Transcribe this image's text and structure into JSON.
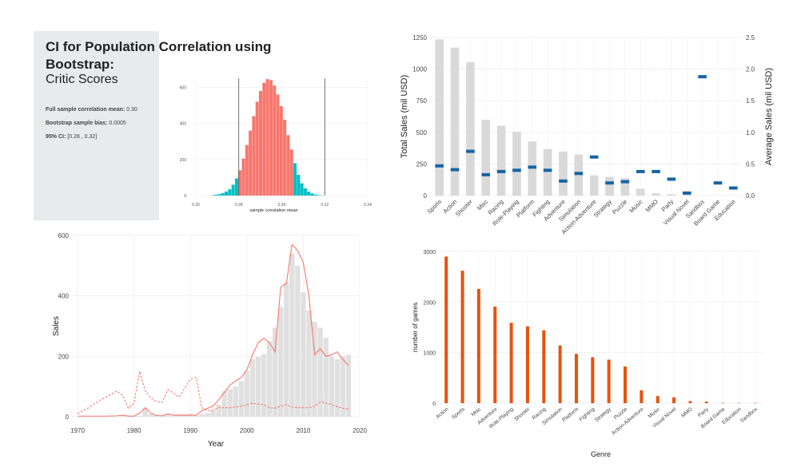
{
  "ci_panel": {
    "title_line1": "CI for Population Correlation using",
    "title_line2": "Bootstrap:",
    "subtitle": "Critic Scores",
    "stats": [
      {
        "label": "Full sample correlation mean:",
        "value": "0.30"
      },
      {
        "label": "Bootstrap sample bias:",
        "value": "0.0005"
      },
      {
        "label": "95% CI:",
        "value": "[0.28 ,  0.32]"
      }
    ],
    "colors": {
      "bar_main": "#f8766d",
      "bar_tail": "#00bfc4"
    }
  },
  "chart_data": [
    {
      "type": "bar",
      "id": "bootstrap-histogram",
      "title": "",
      "xlabel": "sample correlation mean",
      "ylabel": "",
      "xlim": [
        0.26,
        0.34
      ],
      "ylim": [
        0,
        650
      ],
      "x_ticks": [
        "0.26",
        "0.28",
        "0.30",
        "0.32",
        "0.34"
      ],
      "y_ticks": [
        "0",
        "200",
        "400",
        "600"
      ],
      "ci_lines": [
        0.28,
        0.32
      ],
      "bin_start": 0.267,
      "bin_width": 0.0016,
      "values": [
        2,
        5,
        8,
        14,
        22,
        35,
        60,
        95,
        140,
        205,
        280,
        360,
        440,
        520,
        580,
        625,
        645,
        640,
        610,
        560,
        495,
        420,
        335,
        255,
        180,
        115,
        68,
        40,
        22,
        12,
        6,
        3,
        1
      ],
      "tail_bins_left": 8,
      "tail_bins_right": 9
    },
    {
      "type": "bar",
      "id": "genre-sales",
      "title": "",
      "xlabel": "",
      "ylabel": "Total Sales (mil USD)",
      "ylabel_right": "Average Sales (mil USD)",
      "categories": [
        "Sports",
        "Action",
        "Shooter",
        "Misc",
        "Racing",
        "Role-Playing",
        "Platform",
        "Fighting",
        "Adventure",
        "Simulation",
        "Action-Adventure",
        "Strategy",
        "Puzzle",
        "Music",
        "MMO",
        "Party",
        "Visual Novel",
        "Sandbox",
        "Board Game",
        "Education"
      ],
      "series": [
        {
          "name": "",
          "values": [
            1235,
            1170,
            1055,
            600,
            552,
            505,
            428,
            368,
            348,
            325,
            160,
            148,
            137,
            55,
            18,
            10,
            5,
            0,
            0,
            0
          ]
        },
        {
          "name": "",
          "axis": "right",
          "values": [
            0.47,
            0.41,
            0.7,
            0.33,
            0.38,
            0.4,
            0.45,
            0.4,
            0.23,
            0.35,
            0.61,
            0.2,
            0.22,
            0.38,
            0.38,
            0.26,
            0.04,
            1.88,
            0.2,
            0.12
          ]
        }
      ],
      "ylim": [
        0,
        1250
      ],
      "ylim_right": [
        0,
        2.5
      ],
      "y_ticks": [
        "0",
        "250",
        "500",
        "750",
        "1000",
        "1250"
      ],
      "y_ticks_right": [
        "0.0",
        "0.5",
        "1.0",
        "1.5",
        "2.0",
        "2.5"
      ],
      "colors": {
        "bar": "#d9d9d9",
        "mark": "#1565a6"
      }
    },
    {
      "type": "line",
      "id": "sales-by-year",
      "title": "",
      "xlabel": "Year",
      "ylabel": "Sales",
      "xlim": [
        1969,
        2020
      ],
      "ylim": [
        0,
        600
      ],
      "x_ticks": [
        "1970",
        "1980",
        "1990",
        "2000",
        "2010",
        "2020"
      ],
      "y_ticks": [
        "0",
        "200",
        "400",
        "600"
      ],
      "bar_years": [
        1978,
        1979,
        1980,
        1981,
        1982,
        1983,
        1984,
        1985,
        1986,
        1987,
        1988,
        1989,
        1990,
        1991,
        1992,
        1993,
        1994,
        1995,
        1996,
        1997,
        1998,
        1999,
        2000,
        2001,
        2002,
        2003,
        2004,
        2005,
        2006,
        2007,
        2008,
        2009,
        2010,
        2011,
        2012,
        2013,
        2014,
        2015,
        2016,
        2017,
        2018
      ],
      "bar_values": [
        3,
        4,
        3,
        3,
        28,
        10,
        5,
        4,
        8,
        6,
        8,
        8,
        10,
        6,
        8,
        12,
        22,
        40,
        85,
        92,
        100,
        118,
        152,
        190,
        198,
        208,
        250,
        295,
        362,
        445,
        540,
        500,
        412,
        352,
        315,
        295,
        262,
        200,
        190,
        200,
        205
      ],
      "series": [
        {
          "name": "",
          "style": "solid",
          "x": [
            1970,
            1975,
            1977,
            1978,
            1979,
            1980,
            1981,
            1982,
            1983,
            1984,
            1985,
            1986,
            1987,
            1988,
            1990,
            1991,
            1992,
            1994,
            1995,
            1996,
            1997,
            1998,
            1999,
            2000,
            2001,
            2002,
            2003,
            2004,
            2005,
            2006,
            2007,
            2008,
            2009,
            2010,
            2011,
            2012,
            2013,
            2014,
            2015,
            2016,
            2017,
            2018
          ],
          "y": [
            2,
            2,
            3,
            5,
            2,
            2,
            12,
            30,
            12,
            4,
            3,
            10,
            5,
            5,
            5,
            5,
            20,
            35,
            55,
            80,
            105,
            118,
            130,
            155,
            205,
            245,
            260,
            245,
            215,
            430,
            440,
            570,
            550,
            510,
            400,
            205,
            225,
            200,
            205,
            215,
            190,
            170
          ]
        },
        {
          "name": "",
          "style": "dashed",
          "x": [
            1970,
            1972,
            1974,
            1976,
            1977,
            1978,
            1979,
            1980,
            1981,
            1982,
            1983,
            1984,
            1985,
            1986,
            1987,
            1988,
            1989,
            1990,
            1991,
            1992,
            1993,
            1994,
            1995,
            1996,
            1997,
            1998,
            1999,
            2000,
            2001,
            2002,
            2003,
            2004,
            2005,
            2006,
            2007,
            2008,
            2009,
            2010,
            2011,
            2012,
            2013,
            2014,
            2015,
            2016,
            2017,
            2018
          ],
          "y": [
            10,
            30,
            55,
            75,
            85,
            70,
            28,
            45,
            150,
            85,
            62,
            50,
            48,
            90,
            78,
            65,
            95,
            125,
            130,
            30,
            20,
            22,
            30,
            30,
            30,
            32,
            35,
            40,
            45,
            42,
            40,
            30,
            28,
            35,
            40,
            32,
            30,
            30,
            30,
            35,
            50,
            45,
            40,
            33,
            28,
            25
          ]
        }
      ],
      "colors": {
        "line": "#f8766d",
        "bar": "#e0e0e0"
      }
    },
    {
      "type": "bar",
      "id": "games-by-genre",
      "title": "",
      "xlabel": "Genre",
      "ylabel": "number of games",
      "categories": [
        "Action",
        "Sports",
        "Misc",
        "Adventure",
        "Role-Playing",
        "Shooter",
        "Racing",
        "Simulation",
        "Platform",
        "Fighting",
        "Strategy",
        "Puzzle",
        "Action-Adventure",
        "Music",
        "Visual Novel",
        "MMO",
        "Party",
        "Board Game",
        "Education",
        "Sandbox"
      ],
      "values": [
        2900,
        2620,
        2260,
        1910,
        1590,
        1520,
        1440,
        1140,
        975,
        910,
        860,
        725,
        255,
        140,
        115,
        40,
        30,
        5,
        5,
        5
      ],
      "ylim": [
        0,
        3000
      ],
      "y_ticks": [
        "0",
        "1000",
        "2000",
        "3000"
      ],
      "colors": {
        "bar": "#e8520e"
      }
    }
  ]
}
